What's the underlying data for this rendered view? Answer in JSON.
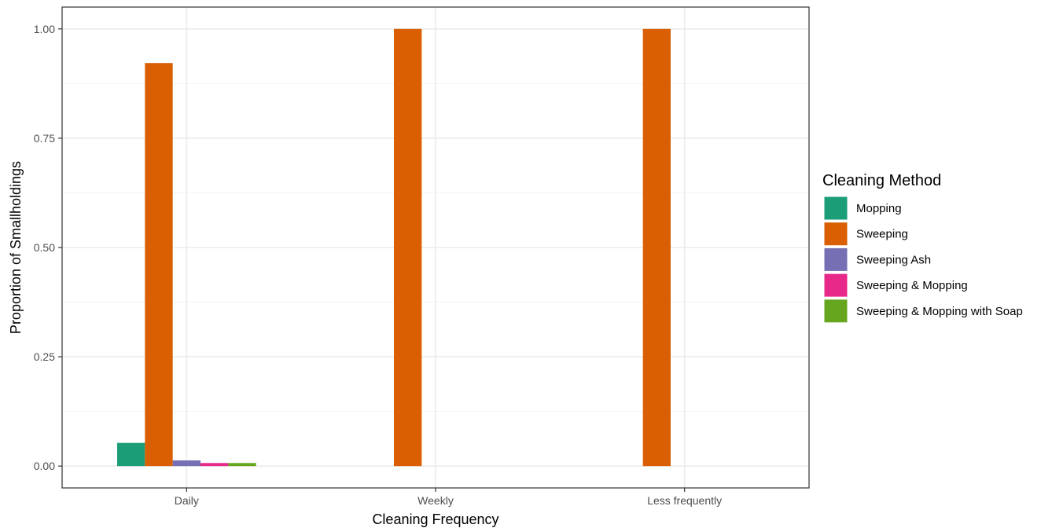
{
  "chart_data": {
    "type": "bar",
    "categories": [
      "Daily",
      "Weekly",
      "Less frequently"
    ],
    "series": [
      {
        "name": "Mopping",
        "color": "#1b9e77",
        "values": [
          0.053,
          0,
          0
        ]
      },
      {
        "name": "Sweeping",
        "color": "#d95f02",
        "values": [
          0.922,
          1.0,
          1.0
        ]
      },
      {
        "name": "Sweeping Ash",
        "color": "#7570b3",
        "values": [
          0.013,
          0,
          0
        ]
      },
      {
        "name": "Sweeping & Mopping",
        "color": "#e7298a",
        "values": [
          0.007,
          0,
          0
        ]
      },
      {
        "name": "Sweeping & Mopping with Soap",
        "color": "#66a61e",
        "values": [
          0.007,
          0,
          0
        ]
      }
    ],
    "xlabel": "Cleaning Frequency",
    "ylabel": "Proportion of Smallholdings",
    "ylim": [
      -0.05,
      1.05
    ],
    "yticks": [
      "0.00",
      "0.25",
      "0.50",
      "0.75",
      "1.00"
    ],
    "legend_title": "Cleaning Method",
    "legend_position": "right",
    "grid": true
  }
}
